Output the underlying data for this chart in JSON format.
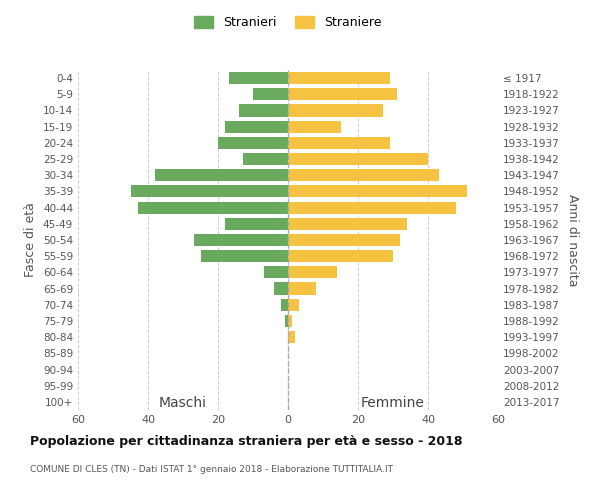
{
  "age_groups": [
    "100+",
    "95-99",
    "90-94",
    "85-89",
    "80-84",
    "75-79",
    "70-74",
    "65-69",
    "60-64",
    "55-59",
    "50-54",
    "45-49",
    "40-44",
    "35-39",
    "30-34",
    "25-29",
    "20-24",
    "15-19",
    "10-14",
    "5-9",
    "0-4"
  ],
  "birth_years": [
    "≤ 1917",
    "1918-1922",
    "1923-1927",
    "1928-1932",
    "1933-1937",
    "1938-1942",
    "1943-1947",
    "1948-1952",
    "1953-1957",
    "1958-1962",
    "1963-1967",
    "1968-1972",
    "1973-1977",
    "1978-1982",
    "1983-1987",
    "1988-1992",
    "1993-1997",
    "1998-2002",
    "2003-2007",
    "2008-2012",
    "2013-2017"
  ],
  "maschi": [
    0,
    0,
    0,
    0,
    0,
    1,
    2,
    4,
    7,
    25,
    27,
    18,
    43,
    45,
    38,
    13,
    20,
    18,
    14,
    10,
    17
  ],
  "femmine": [
    0,
    0,
    0,
    0,
    2,
    1,
    3,
    8,
    14,
    30,
    32,
    34,
    48,
    51,
    43,
    40,
    29,
    15,
    27,
    31,
    29
  ],
  "male_color": "#6aaa5e",
  "female_color": "#f5c242",
  "background_color": "#ffffff",
  "grid_color": "#cccccc",
  "title": "Popolazione per cittadinanza straniera per età e sesso - 2018",
  "subtitle": "COMUNE DI CLES (TN) - Dati ISTAT 1° gennaio 2018 - Elaborazione TUTTITALIA.IT",
  "xlabel_left": "Maschi",
  "xlabel_right": "Femmine",
  "ylabel_left": "Fasce di età",
  "ylabel_right": "Anni di nascita",
  "legend_male": "Stranieri",
  "legend_female": "Straniere",
  "xlim": 60
}
